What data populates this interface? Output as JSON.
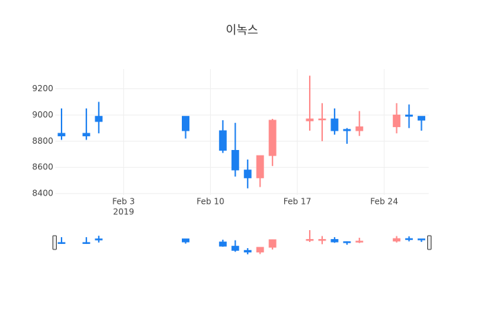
{
  "chart_data": {
    "type": "candlestick",
    "title": "이녹스",
    "x": [
      "2019-01-29",
      "2019-01-31",
      "2019-02-01",
      "2019-02-08",
      "2019-02-11",
      "2019-02-12",
      "2019-02-13",
      "2019-02-14",
      "2019-02-15",
      "2019-02-18",
      "2019-02-19",
      "2019-02-20",
      "2019-02-21",
      "2019-02-22",
      "2019-02-25",
      "2019-02-26",
      "2019-02-27"
    ],
    "open": [
      8860,
      8860,
      8990,
      8990,
      8880,
      8730,
      8580,
      8520,
      8690,
      8955,
      8965,
      8970,
      8890,
      8880,
      8910,
      9000,
      8990
    ],
    "high": [
      9050,
      9050,
      9100,
      8990,
      8960,
      8940,
      8660,
      8690,
      8970,
      9300,
      9090,
      9050,
      8900,
      9030,
      9090,
      9080,
      8990
    ],
    "low": [
      8810,
      8810,
      8860,
      8820,
      8710,
      8530,
      8440,
      8450,
      8610,
      8880,
      8800,
      8850,
      8780,
      8840,
      8860,
      8900,
      8880
    ],
    "close": [
      8840,
      8840,
      8950,
      8880,
      8730,
      8580,
      8520,
      8690,
      8960,
      8970,
      8970,
      8880,
      8880,
      8910,
      9000,
      8990,
      8960
    ],
    "increasing_color": "#ff8a8a",
    "decreasing_color": "#1b7ff0",
    "xlim": [
      "2019-01-28T12:00",
      "2019-02-27T14:00"
    ],
    "xticks": [
      {
        "value": "2019-02-03",
        "label": "Feb 3"
      },
      {
        "value": "2019-02-10",
        "label": "Feb 10"
      },
      {
        "value": "2019-02-17",
        "label": "Feb 17"
      },
      {
        "value": "2019-02-24",
        "label": "Feb 24"
      }
    ],
    "xtick_year": "2019",
    "ylim": [
      8390,
      9350
    ],
    "yticks": [
      8400,
      8600,
      8800,
      9000,
      9200
    ],
    "grid": true,
    "rangeslider": true
  }
}
